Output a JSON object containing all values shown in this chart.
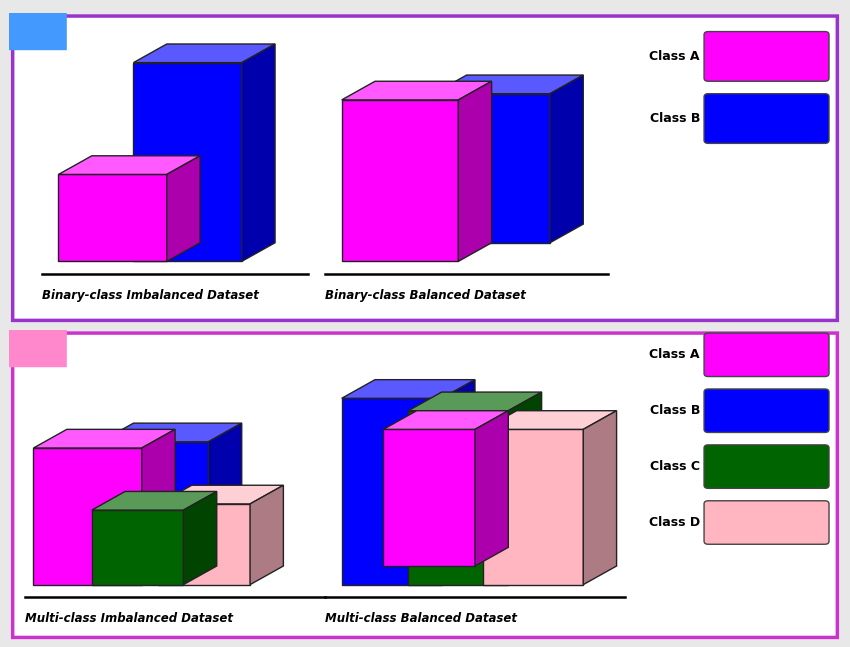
{
  "color_A": "#ff00ff",
  "color_B": "#0000ff",
  "color_C": "#006400",
  "color_D": "#ffb6c1",
  "border_color_top": "#9933cc",
  "border_color_bottom": "#cc33cc",
  "tab_color_top": "#4499ff",
  "tab_color_bottom": "#ff88cc",
  "title_top_left": "Binary-class Imbalanced Dataset",
  "title_top_right": "Binary-class Balanced Dataset",
  "title_bottom_left": "Multi-class Imbalanced Dataset",
  "title_bottom_right": "Multi-class Balanced Dataset",
  "legend_binary": [
    "Class A",
    "Class B"
  ],
  "legend_multi": [
    "Class A",
    "Class B",
    "Class C",
    "Class D"
  ],
  "fig_bg": "#e8e8e8"
}
